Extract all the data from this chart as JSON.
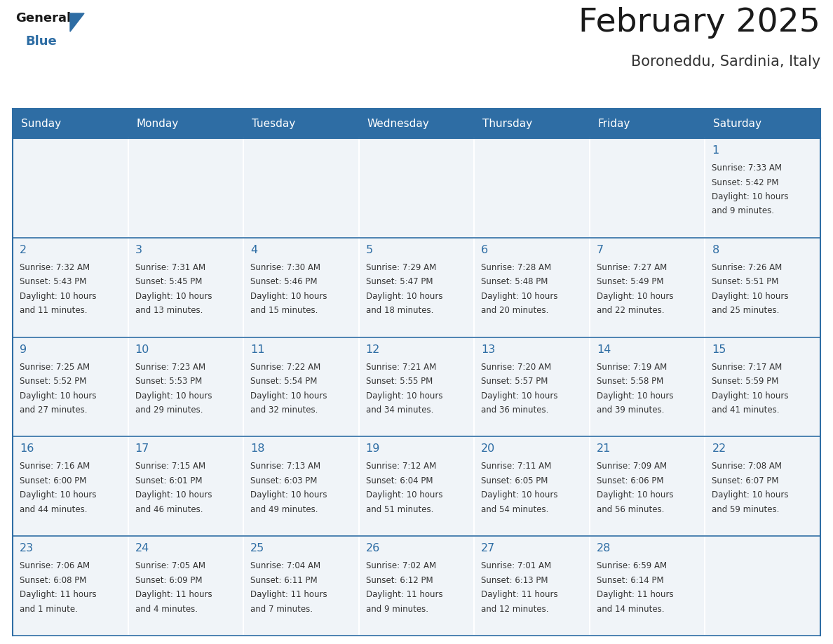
{
  "title": "February 2025",
  "subtitle": "Boroneddu, Sardinia, Italy",
  "days_of_week": [
    "Sunday",
    "Monday",
    "Tuesday",
    "Wednesday",
    "Thursday",
    "Friday",
    "Saturday"
  ],
  "header_bg": "#2E6DA4",
  "header_text": "#FFFFFF",
  "cell_bg": "#F0F4F8",
  "border_color": "#2E6DA4",
  "day_number_color": "#2E6DA4",
  "cell_text_color": "#333333",
  "title_color": "#1a1a1a",
  "subtitle_color": "#333333",
  "logo_general_color": "#1a1a1a",
  "logo_blue_color": "#2E6DA4",
  "calendar_data": [
    [
      null,
      null,
      null,
      null,
      null,
      null,
      {
        "day": 1,
        "sunrise": "7:33 AM",
        "sunset": "5:42 PM",
        "daylight_line1": "Daylight: 10 hours",
        "daylight_line2": "and 9 minutes."
      }
    ],
    [
      {
        "day": 2,
        "sunrise": "7:32 AM",
        "sunset": "5:43 PM",
        "daylight_line1": "Daylight: 10 hours",
        "daylight_line2": "and 11 minutes."
      },
      {
        "day": 3,
        "sunrise": "7:31 AM",
        "sunset": "5:45 PM",
        "daylight_line1": "Daylight: 10 hours",
        "daylight_line2": "and 13 minutes."
      },
      {
        "day": 4,
        "sunrise": "7:30 AM",
        "sunset": "5:46 PM",
        "daylight_line1": "Daylight: 10 hours",
        "daylight_line2": "and 15 minutes."
      },
      {
        "day": 5,
        "sunrise": "7:29 AM",
        "sunset": "5:47 PM",
        "daylight_line1": "Daylight: 10 hours",
        "daylight_line2": "and 18 minutes."
      },
      {
        "day": 6,
        "sunrise": "7:28 AM",
        "sunset": "5:48 PM",
        "daylight_line1": "Daylight: 10 hours",
        "daylight_line2": "and 20 minutes."
      },
      {
        "day": 7,
        "sunrise": "7:27 AM",
        "sunset": "5:49 PM",
        "daylight_line1": "Daylight: 10 hours",
        "daylight_line2": "and 22 minutes."
      },
      {
        "day": 8,
        "sunrise": "7:26 AM",
        "sunset": "5:51 PM",
        "daylight_line1": "Daylight: 10 hours",
        "daylight_line2": "and 25 minutes."
      }
    ],
    [
      {
        "day": 9,
        "sunrise": "7:25 AM",
        "sunset": "5:52 PM",
        "daylight_line1": "Daylight: 10 hours",
        "daylight_line2": "and 27 minutes."
      },
      {
        "day": 10,
        "sunrise": "7:23 AM",
        "sunset": "5:53 PM",
        "daylight_line1": "Daylight: 10 hours",
        "daylight_line2": "and 29 minutes."
      },
      {
        "day": 11,
        "sunrise": "7:22 AM",
        "sunset": "5:54 PM",
        "daylight_line1": "Daylight: 10 hours",
        "daylight_line2": "and 32 minutes."
      },
      {
        "day": 12,
        "sunrise": "7:21 AM",
        "sunset": "5:55 PM",
        "daylight_line1": "Daylight: 10 hours",
        "daylight_line2": "and 34 minutes."
      },
      {
        "day": 13,
        "sunrise": "7:20 AM",
        "sunset": "5:57 PM",
        "daylight_line1": "Daylight: 10 hours",
        "daylight_line2": "and 36 minutes."
      },
      {
        "day": 14,
        "sunrise": "7:19 AM",
        "sunset": "5:58 PM",
        "daylight_line1": "Daylight: 10 hours",
        "daylight_line2": "and 39 minutes."
      },
      {
        "day": 15,
        "sunrise": "7:17 AM",
        "sunset": "5:59 PM",
        "daylight_line1": "Daylight: 10 hours",
        "daylight_line2": "and 41 minutes."
      }
    ],
    [
      {
        "day": 16,
        "sunrise": "7:16 AM",
        "sunset": "6:00 PM",
        "daylight_line1": "Daylight: 10 hours",
        "daylight_line2": "and 44 minutes."
      },
      {
        "day": 17,
        "sunrise": "7:15 AM",
        "sunset": "6:01 PM",
        "daylight_line1": "Daylight: 10 hours",
        "daylight_line2": "and 46 minutes."
      },
      {
        "day": 18,
        "sunrise": "7:13 AM",
        "sunset": "6:03 PM",
        "daylight_line1": "Daylight: 10 hours",
        "daylight_line2": "and 49 minutes."
      },
      {
        "day": 19,
        "sunrise": "7:12 AM",
        "sunset": "6:04 PM",
        "daylight_line1": "Daylight: 10 hours",
        "daylight_line2": "and 51 minutes."
      },
      {
        "day": 20,
        "sunrise": "7:11 AM",
        "sunset": "6:05 PM",
        "daylight_line1": "Daylight: 10 hours",
        "daylight_line2": "and 54 minutes."
      },
      {
        "day": 21,
        "sunrise": "7:09 AM",
        "sunset": "6:06 PM",
        "daylight_line1": "Daylight: 10 hours",
        "daylight_line2": "and 56 minutes."
      },
      {
        "day": 22,
        "sunrise": "7:08 AM",
        "sunset": "6:07 PM",
        "daylight_line1": "Daylight: 10 hours",
        "daylight_line2": "and 59 minutes."
      }
    ],
    [
      {
        "day": 23,
        "sunrise": "7:06 AM",
        "sunset": "6:08 PM",
        "daylight_line1": "Daylight: 11 hours",
        "daylight_line2": "and 1 minute."
      },
      {
        "day": 24,
        "sunrise": "7:05 AM",
        "sunset": "6:09 PM",
        "daylight_line1": "Daylight: 11 hours",
        "daylight_line2": "and 4 minutes."
      },
      {
        "day": 25,
        "sunrise": "7:04 AM",
        "sunset": "6:11 PM",
        "daylight_line1": "Daylight: 11 hours",
        "daylight_line2": "and 7 minutes."
      },
      {
        "day": 26,
        "sunrise": "7:02 AM",
        "sunset": "6:12 PM",
        "daylight_line1": "Daylight: 11 hours",
        "daylight_line2": "and 9 minutes."
      },
      {
        "day": 27,
        "sunrise": "7:01 AM",
        "sunset": "6:13 PM",
        "daylight_line1": "Daylight: 11 hours",
        "daylight_line2": "and 12 minutes."
      },
      {
        "day": 28,
        "sunrise": "6:59 AM",
        "sunset": "6:14 PM",
        "daylight_line1": "Daylight: 11 hours",
        "daylight_line2": "and 14 minutes."
      },
      null
    ]
  ]
}
